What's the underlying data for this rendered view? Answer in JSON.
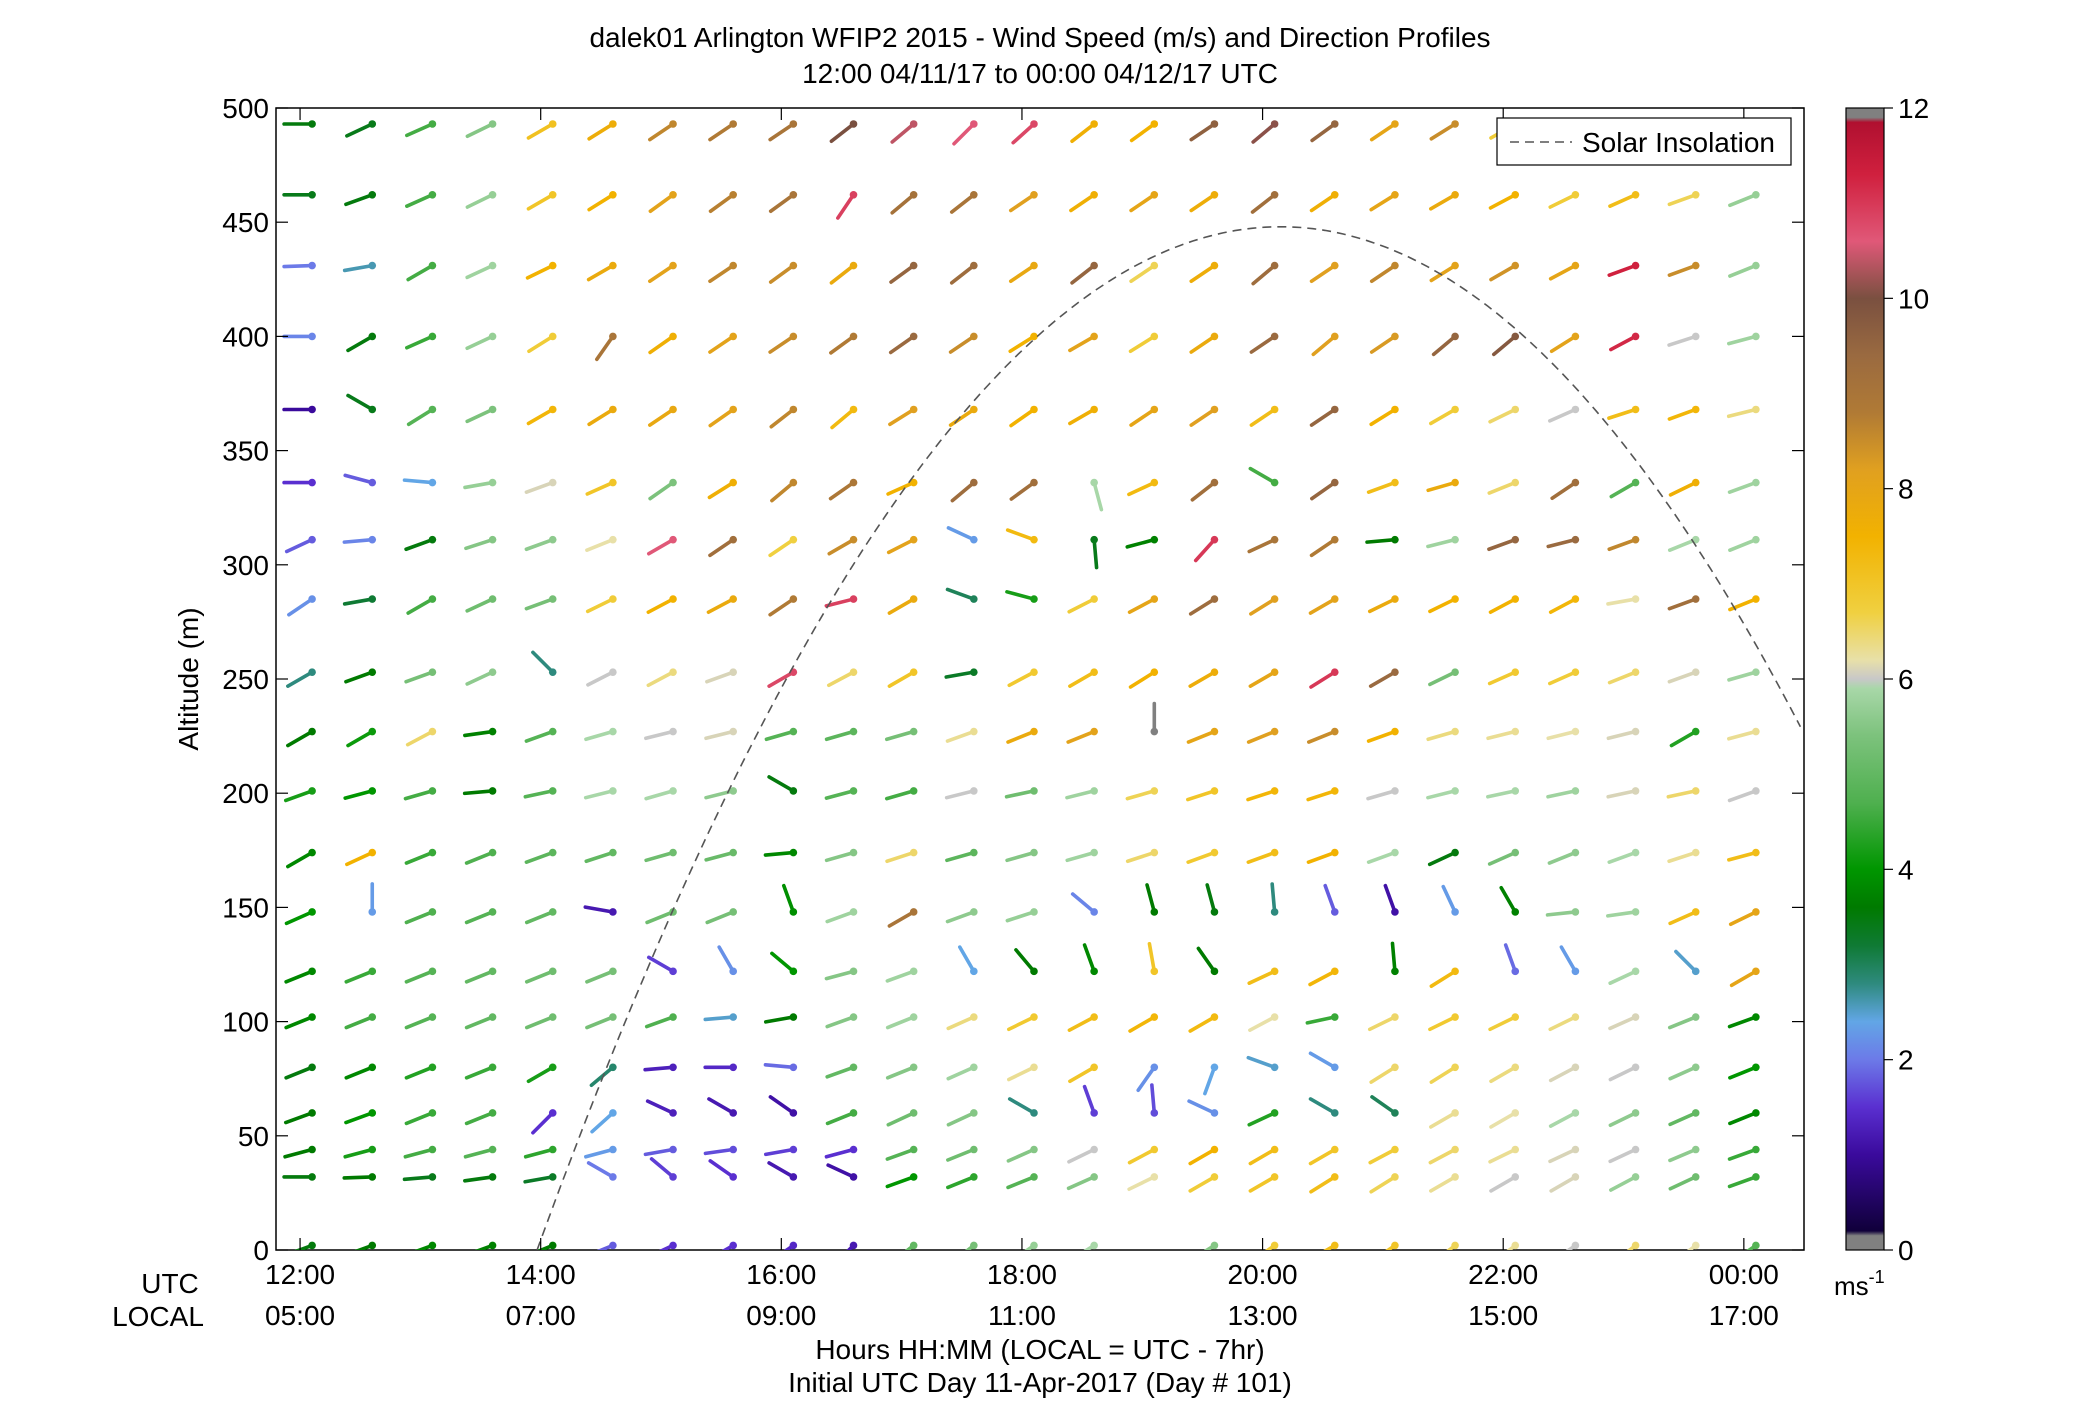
{
  "header": {
    "title_line1": "dalek01 Arlington WFIP2 2015 - Wind Speed (m/s) and Direction Profiles",
    "title_line2": "12:00 04/11/17 to 00:00 04/12/17  UTC"
  },
  "footer": {
    "utc_label": "UTC",
    "local_label": "LOCAL",
    "xlabel": "Hours HH:MM  (LOCAL = UTC - 7hr)",
    "day_label": "Initial UTC Day 11-Apr-2017 (Day # 101)"
  },
  "legend": {
    "label": "Solar Insolation",
    "placement": "top-right"
  },
  "colorbar": {
    "unit_main": "ms",
    "unit_exp": "-1",
    "ticks": [
      "0",
      "2",
      "4",
      "6",
      "8",
      "10",
      "12"
    ],
    "stops": [
      {
        "v": 0.0,
        "c": "#808080"
      },
      {
        "v": 0.15,
        "c": "#808080"
      },
      {
        "v": 0.2,
        "c": "#10003a"
      },
      {
        "v": 1.0,
        "c": "#3a0a9c"
      },
      {
        "v": 1.5,
        "c": "#5a2fd0"
      },
      {
        "v": 2.0,
        "c": "#6c7ae8"
      },
      {
        "v": 2.4,
        "c": "#62a6e6"
      },
      {
        "v": 2.8,
        "c": "#2e8a7e"
      },
      {
        "v": 3.2,
        "c": "#0f7a34"
      },
      {
        "v": 3.6,
        "c": "#007a00"
      },
      {
        "v": 4.0,
        "c": "#009600"
      },
      {
        "v": 4.7,
        "c": "#4fb04f"
      },
      {
        "v": 5.4,
        "c": "#7cc27c"
      },
      {
        "v": 5.9,
        "c": "#a8d7a8"
      },
      {
        "v": 6.0,
        "c": "#c8c8c8"
      },
      {
        "v": 6.2,
        "c": "#e8e0a8"
      },
      {
        "v": 6.7,
        "c": "#f0d040"
      },
      {
        "v": 7.5,
        "c": "#f2b200"
      },
      {
        "v": 8.2,
        "c": "#e0a020"
      },
      {
        "v": 8.8,
        "c": "#b07a35"
      },
      {
        "v": 9.4,
        "c": "#9a6a40"
      },
      {
        "v": 10.0,
        "c": "#7a5040"
      },
      {
        "v": 10.6,
        "c": "#e05878"
      },
      {
        "v": 11.3,
        "c": "#d0203e"
      },
      {
        "v": 11.85,
        "c": "#b01030"
      },
      {
        "v": 11.9,
        "c": "#808080"
      },
      {
        "v": 12.0,
        "c": "#808080"
      }
    ]
  },
  "chart_data": {
    "type": "wind-barb-profile",
    "title": "dalek01 Arlington WFIP2 2015 - Wind Speed (m/s) and Direction Profiles",
    "ylabel": "Altitude (m)",
    "xlabel": "Hours HH:MM  (LOCAL = UTC - 7hr)",
    "xlim": [
      11.8,
      24.5
    ],
    "ylim": [
      0,
      500
    ],
    "grid": false,
    "x_ticks_utc": [
      "12:00",
      "14:00",
      "16:00",
      "18:00",
      "20:00",
      "22:00",
      "00:00"
    ],
    "x_ticks_local": [
      "05:00",
      "07:00",
      "09:00",
      "11:00",
      "13:00",
      "15:00",
      "17:00"
    ],
    "x_tick_hours": [
      12,
      14,
      16,
      18,
      20,
      22,
      24
    ],
    "y_ticks": [
      0,
      50,
      100,
      150,
      200,
      250,
      300,
      350,
      400,
      450,
      500
    ],
    "color_scale_label": "Wind Speed (m/s)",
    "color_range": [
      0,
      12
    ],
    "times_hours": [
      12.1,
      12.6,
      13.1,
      13.6,
      14.1,
      14.6,
      15.1,
      15.6,
      16.1,
      16.6,
      17.1,
      17.6,
      18.1,
      18.6,
      19.1,
      19.6,
      20.1,
      20.6,
      21.1,
      21.6,
      22.1,
      22.6,
      23.1,
      23.6,
      24.1
    ],
    "altitudes_m": [
      2,
      32,
      44,
      60,
      80,
      102,
      122,
      148,
      174,
      201,
      227,
      253,
      285,
      311,
      336,
      368,
      400,
      431,
      462,
      493
    ],
    "speeds_ms": [
      [
        3.5,
        3.6,
        3.8,
        3.7,
        3.6,
        1.8,
        1.5,
        1.5,
        1.4,
        1.2,
        5.0,
        5.3,
        5.7,
        5.9,
        0,
        5.5,
        6.8,
        7.2,
        7.0,
        6.6,
        6.3,
        6.0,
        6.5,
        6.2,
        4.8
      ],
      [
        3.5,
        3.6,
        3.4,
        3.5,
        3.3,
        2.0,
        1.6,
        1.5,
        1.2,
        1.1,
        4.0,
        4.4,
        4.8,
        5.5,
        6.2,
        6.8,
        7.0,
        7.2,
        6.6,
        6.3,
        6.0,
        6.1,
        5.7,
        5.2,
        4.5
      ],
      [
        3.6,
        4.2,
        4.6,
        4.8,
        4.4,
        2.3,
        1.8,
        1.7,
        1.6,
        1.5,
        4.8,
        5.2,
        5.5,
        6.0,
        6.9,
        7.5,
        7.2,
        7.0,
        6.8,
        6.5,
        6.3,
        6.1,
        6.0,
        5.6,
        4.5
      ],
      [
        3.6,
        4.0,
        4.5,
        4.6,
        1.5,
        2.4,
        1.3,
        1.2,
        1.1,
        4.6,
        5.2,
        5.5,
        2.8,
        1.6,
        1.7,
        2.2,
        4.3,
        2.8,
        3.0,
        6.3,
        6.2,
        5.9,
        5.6,
        5.0,
        3.8
      ],
      [
        3.5,
        3.8,
        4.3,
        4.5,
        4.2,
        2.9,
        1.3,
        1.4,
        1.9,
        5.0,
        5.5,
        5.8,
        6.3,
        7.0,
        2.2,
        2.4,
        2.5,
        2.3,
        6.5,
        6.6,
        6.4,
        6.1,
        6.0,
        5.6,
        4.0
      ],
      [
        3.8,
        4.6,
        4.8,
        5.0,
        5.2,
        5.3,
        4.7,
        2.5,
        3.6,
        5.5,
        5.8,
        6.4,
        6.9,
        7.2,
        7.4,
        7.3,
        6.2,
        4.5,
        6.5,
        6.9,
        6.8,
        6.4,
        6.1,
        5.5,
        3.8
      ],
      [
        3.8,
        4.5,
        4.8,
        5.0,
        5.2,
        5.3,
        1.6,
        2.2,
        4.0,
        5.5,
        5.8,
        2.4,
        3.6,
        3.8,
        7.0,
        3.6,
        7.2,
        7.4,
        3.7,
        7.3,
        1.9,
        2.3,
        5.9,
        2.5,
        8.0
      ],
      [
        4.0,
        2.3,
        4.7,
        4.8,
        5.0,
        1.2,
        5.2,
        5.3,
        3.9,
        5.8,
        9.0,
        5.6,
        5.7,
        2.1,
        3.6,
        3.5,
        2.8,
        1.8,
        1.1,
        2.3,
        3.7,
        5.6,
        5.8,
        7.2,
        8.0
      ],
      [
        3.8,
        7.5,
        4.5,
        4.7,
        4.9,
        5.0,
        5.2,
        5.1,
        3.8,
        5.5,
        6.5,
        4.9,
        5.5,
        5.8,
        6.5,
        6.9,
        7.2,
        7.5,
        5.9,
        3.5,
        5.3,
        5.6,
        5.9,
        6.3,
        7.2
      ],
      [
        4.2,
        4.0,
        4.6,
        3.6,
        4.8,
        5.9,
        5.9,
        5.6,
        3.5,
        4.8,
        4.6,
        6.0,
        5.2,
        5.8,
        6.6,
        7.0,
        7.4,
        7.4,
        6.0,
        5.9,
        5.9,
        5.8,
        6.1,
        6.5,
        6.0
      ],
      [
        3.6,
        4.1,
        6.5,
        3.7,
        4.8,
        5.9,
        6.0,
        6.1,
        4.8,
        4.9,
        5.3,
        6.3,
        7.8,
        8.1,
        0.1,
        8.0,
        8.2,
        8.5,
        7.5,
        6.4,
        6.3,
        6.2,
        6.1,
        4.3,
        6.3
      ],
      [
        2.8,
        3.6,
        5.3,
        5.6,
        2.8,
        6.0,
        6.4,
        6.1,
        10.8,
        6.5,
        7.0,
        3.3,
        6.9,
        7.2,
        7.5,
        7.7,
        8.0,
        11.0,
        9.4,
        5.3,
        6.9,
        6.8,
        6.5,
        6.1,
        5.8
      ],
      [
        2.2,
        3.2,
        4.6,
        5.2,
        5.3,
        6.8,
        7.5,
        7.8,
        8.8,
        10.9,
        7.8,
        3.0,
        4.2,
        6.8,
        8.0,
        9.3,
        8.2,
        8.1,
        7.8,
        7.5,
        7.5,
        7.4,
        6.2,
        9.2,
        7.5
      ],
      [
        1.8,
        2.1,
        3.5,
        5.5,
        5.6,
        6.2,
        10.6,
        9.2,
        6.7,
        8.5,
        8.1,
        2.3,
        7.3,
        3.4,
        3.7,
        11.0,
        9.0,
        8.8,
        3.6,
        5.8,
        9.5,
        9.4,
        8.6,
        5.9,
        5.8
      ],
      [
        1.5,
        1.8,
        2.4,
        5.7,
        6.1,
        7.0,
        5.4,
        7.6,
        8.6,
        8.9,
        7.5,
        9.3,
        9.2,
        5.9,
        7.3,
        9.2,
        4.6,
        9.5,
        7.2,
        7.8,
        6.5,
        9.2,
        4.8,
        7.6,
        5.8
      ],
      [
        1.0,
        3.4,
        4.8,
        5.4,
        7.4,
        7.8,
        7.9,
        8.1,
        8.6,
        7.3,
        8.2,
        7.8,
        7.5,
        7.6,
        8.0,
        8.2,
        7.2,
        9.5,
        7.5,
        6.8,
        6.5,
        6.0,
        7.2,
        7.4,
        6.4
      ],
      [
        2.1,
        3.5,
        4.5,
        5.7,
        6.8,
        9.0,
        7.6,
        8.1,
        8.5,
        8.8,
        9.4,
        8.5,
        7.5,
        8.1,
        6.8,
        7.8,
        9.4,
        8.2,
        8.3,
        9.5,
        9.8,
        8.1,
        11.2,
        6.0,
        5.8
      ],
      [
        2.0,
        2.6,
        4.6,
        5.8,
        7.5,
        7.8,
        8.1,
        8.6,
        8.5,
        7.8,
        9.5,
        9.3,
        7.9,
        9.5,
        6.6,
        7.7,
        9.3,
        8.2,
        8.6,
        8.1,
        8.4,
        8.0,
        11.3,
        8.5,
        5.7
      ],
      [
        3.4,
        3.5,
        4.6,
        5.7,
        7.0,
        7.5,
        8.1,
        8.7,
        9.0,
        10.9,
        9.1,
        9.0,
        8.2,
        7.6,
        8.0,
        7.7,
        9.2,
        7.6,
        8.0,
        7.8,
        7.5,
        6.8,
        7.2,
        6.6,
        5.7
      ],
      [
        3.5,
        3.4,
        4.6,
        5.5,
        7.1,
        7.7,
        8.6,
        8.8,
        9.0,
        10.0,
        10.4,
        10.6,
        10.8,
        7.6,
        7.5,
        9.6,
        10.1,
        9.5,
        8.0,
        8.5,
        6.8,
        8.0,
        7.2,
        6.8,
        5.7
      ]
    ],
    "directions_deg": [
      [
        250,
        250,
        250,
        250,
        248,
        248,
        245,
        240,
        235,
        225,
        232,
        232,
        235,
        238,
        0,
        238,
        235,
        240,
        235,
        232,
        232,
        235,
        232,
        232,
        235
      ],
      [
        270,
        268,
        265,
        262,
        260,
        300,
        310,
        305,
        300,
        295,
        250,
        248,
        248,
        246,
        244,
        240,
        240,
        238,
        238,
        240,
        240,
        240,
        242,
        245,
        250
      ],
      [
        255,
        255,
        255,
        255,
        255,
        255,
        260,
        262,
        260,
        255,
        250,
        248,
        246,
        244,
        242,
        240,
        240,
        240,
        242,
        242,
        244,
        245,
        245,
        247,
        250
      ],
      [
        250,
        250,
        248,
        248,
        225,
        228,
        295,
        300,
        305,
        248,
        245,
        245,
        300,
        340,
        355,
        295,
        245,
        300,
        305,
        240,
        240,
        242,
        244,
        246,
        248
      ],
      [
        248,
        248,
        248,
        248,
        240,
        230,
        265,
        270,
        275,
        250,
        248,
        246,
        244,
        240,
        215,
        200,
        290,
        300,
        238,
        238,
        240,
        242,
        244,
        246,
        248
      ],
      [
        248,
        248,
        248,
        248,
        248,
        248,
        250,
        265,
        260,
        250,
        248,
        246,
        244,
        242,
        240,
        240,
        242,
        258,
        244,
        244,
        244,
        244,
        246,
        248,
        250
      ],
      [
        248,
        248,
        248,
        248,
        248,
        248,
        300,
        330,
        310,
        255,
        250,
        330,
        320,
        340,
        350,
        325,
        245,
        242,
        355,
        238,
        340,
        330,
        245,
        315,
        240
      ],
      [
        246,
        0,
        248,
        248,
        248,
        280,
        248,
        248,
        340,
        250,
        240,
        250,
        252,
        310,
        345,
        345,
        355,
        340,
        340,
        335,
        330,
        264,
        262,
        246,
        244
      ],
      [
        240,
        245,
        248,
        248,
        250,
        252,
        254,
        255,
        265,
        254,
        252,
        254,
        254,
        254,
        252,
        250,
        250,
        250,
        250,
        245,
        246,
        248,
        250,
        252,
        255
      ],
      [
        250,
        255,
        254,
        265,
        258,
        256,
        254,
        256,
        300,
        255,
        254,
        256,
        258,
        256,
        254,
        252,
        252,
        252,
        254,
        256,
        258,
        258,
        258,
        258,
        250
      ],
      [
        240,
        240,
        242,
        262,
        250,
        254,
        256,
        256,
        254,
        254,
        254,
        250,
        248,
        248,
        0,
        248,
        248,
        248,
        250,
        254,
        256,
        256,
        256,
        240,
        255
      ],
      [
        240,
        250,
        250,
        245,
        315,
        243,
        242,
        250,
        240,
        242,
        240,
        260,
        242,
        240,
        238,
        240,
        240,
        238,
        240,
        244,
        246,
        246,
        248,
        250,
        254
      ],
      [
        236,
        260,
        240,
        245,
        250,
        244,
        242,
        242,
        236,
        256,
        240,
        290,
        285,
        243,
        242,
        238,
        238,
        240,
        244,
        244,
        242,
        242,
        260,
        250,
        248
      ],
      [
        245,
        265,
        250,
        252,
        250,
        248,
        240,
        236,
        236,
        240,
        243,
        295,
        290,
        175,
        255,
        222,
        245,
        236,
        265,
        256,
        250,
        256,
        250,
        248,
        248
      ],
      [
        270,
        285,
        275,
        260,
        250,
        246,
        235,
        238,
        230,
        235,
        246,
        230,
        234,
        165,
        245,
        232,
        300,
        235,
        250,
        254,
        248,
        236,
        240,
        244,
        250
      ],
      [
        270,
        300,
        238,
        245,
        240,
        238,
        236,
        235,
        232,
        230,
        238,
        236,
        235,
        240,
        236,
        236,
        236,
        236,
        238,
        240,
        244,
        246,
        252,
        250,
        256
      ],
      [
        270,
        240,
        246,
        245,
        238,
        215,
        235,
        236,
        236,
        234,
        235,
        236,
        238,
        240,
        238,
        236,
        236,
        230,
        236,
        230,
        230,
        238,
        242,
        252,
        255
      ],
      [
        268,
        260,
        240,
        245,
        244,
        240,
        236,
        236,
        234,
        232,
        234,
        232,
        236,
        232,
        236,
        236,
        230,
        236,
        236,
        238,
        240,
        242,
        250,
        250,
        248
      ],
      [
        270,
        250,
        246,
        244,
        240,
        238,
        234,
        234,
        234,
        214,
        230,
        232,
        236,
        236,
        236,
        236,
        232,
        236,
        238,
        240,
        242,
        244,
        246,
        250,
        248
      ],
      [
        270,
        245,
        246,
        244,
        240,
        238,
        236,
        236,
        236,
        232,
        230,
        225,
        228,
        232,
        234,
        236,
        230,
        234,
        236,
        238,
        240,
        242,
        244,
        248,
        250
      ]
    ],
    "solar_insolation_curve": {
      "style": "dashed",
      "start_hour": 13.97,
      "peak_hour": 20.15,
      "peak_altitude_m": 448,
      "end_hour": 24.5,
      "end_altitude_m": 195
    }
  }
}
